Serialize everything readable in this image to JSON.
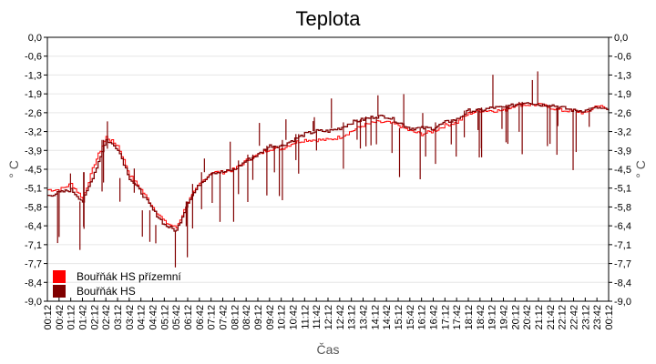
{
  "chart_data": {
    "type": "line",
    "title": "Teplota",
    "xlabel": "Čas",
    "ylabel": "° C",
    "ylabel_right": "° C",
    "ylim": [
      -9.0,
      0.0
    ],
    "y_ticks": [
      "0,0",
      "-0,6",
      "-1,3",
      "-1,9",
      "-2,6",
      "-3,2",
      "-3,9",
      "-4,5",
      "-5,1",
      "-5,8",
      "-6,4",
      "-7,1",
      "-7,7",
      "-8,4",
      "-9,0"
    ],
    "grid": true,
    "legend_position": "bottom-left inside",
    "x": [
      "00:12",
      "00:42",
      "01:12",
      "01:42",
      "02:12",
      "02:42",
      "03:12",
      "03:42",
      "04:12",
      "04:42",
      "05:12",
      "05:42",
      "06:12",
      "06:42",
      "07:12",
      "07:42",
      "08:12",
      "08:42",
      "09:12",
      "09:42",
      "10:12",
      "10:42",
      "11:12",
      "11:42",
      "12:12",
      "12:42",
      "13:12",
      "13:42",
      "14:12",
      "14:42",
      "15:12",
      "15:42",
      "16:12",
      "16:42",
      "17:12",
      "17:42",
      "18:12",
      "18:42",
      "19:12",
      "19:42",
      "20:12",
      "20:42",
      "21:12",
      "21:42",
      "22:12",
      "22:42",
      "23:12",
      "23:42",
      "00:12"
    ],
    "series": [
      {
        "name": "Bouřňák HS přízemní",
        "color": "#ff0000",
        "values": [
          -5.2,
          -5.2,
          -5.0,
          -5.5,
          -4.3,
          -3.4,
          -3.7,
          -4.7,
          -5.2,
          -5.8,
          -6.3,
          -6.5,
          -5.6,
          -5.0,
          -4.6,
          -4.6,
          -4.5,
          -4.2,
          -4.0,
          -3.8,
          -3.8,
          -3.6,
          -3.5,
          -3.5,
          -3.5,
          -3.4,
          -3.2,
          -3.0,
          -2.9,
          -2.9,
          -3.0,
          -3.2,
          -3.3,
          -3.2,
          -3.0,
          -2.9,
          -2.6,
          -2.5,
          -2.5,
          -2.5,
          -2.3,
          -2.3,
          -2.3,
          -2.4,
          -2.5,
          -2.5,
          -2.6,
          -2.3,
          -2.5
        ]
      },
      {
        "name": "Bouřňák HS",
        "color": "#800000",
        "values": [
          -5.4,
          -5.3,
          -5.2,
          -5.6,
          -4.6,
          -3.5,
          -3.8,
          -4.8,
          -5.3,
          -5.9,
          -6.4,
          -6.6,
          -5.6,
          -5.0,
          -4.6,
          -4.6,
          -4.5,
          -4.2,
          -4.0,
          -3.7,
          -3.7,
          -3.5,
          -3.3,
          -3.2,
          -3.2,
          -3.1,
          -2.9,
          -2.8,
          -2.7,
          -2.7,
          -2.9,
          -3.1,
          -3.1,
          -3.1,
          -2.9,
          -2.8,
          -2.5,
          -2.5,
          -2.4,
          -2.4,
          -2.3,
          -2.2,
          -2.3,
          -2.3,
          -2.4,
          -2.5,
          -2.5,
          -2.4,
          -2.5
        ]
      }
    ]
  },
  "legend": {
    "items": [
      {
        "label": "Bouřňák HS přízemní",
        "color": "#ff0000"
      },
      {
        "label": "Bouřňák HS",
        "color": "#800000"
      }
    ]
  }
}
